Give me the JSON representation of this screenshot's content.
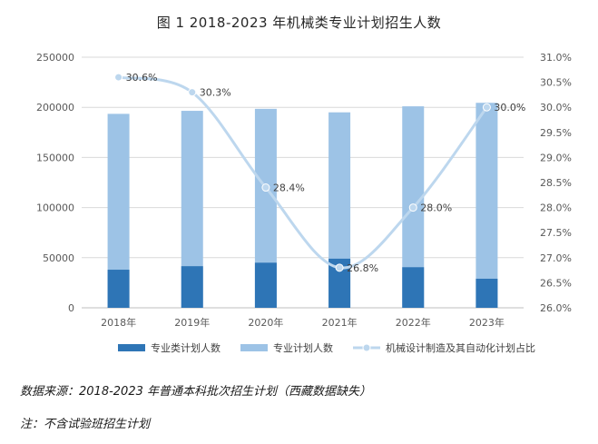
{
  "chart_data": {
    "type": "bar",
    "title": "图 1 2018-2023 年机械类专业计划招生人数",
    "categories": [
      "2018年",
      "2019年",
      "2020年",
      "2021年",
      "2022年",
      "2023年"
    ],
    "series": [
      {
        "name": "专业类计划人数",
        "type": "bar",
        "axis": "left",
        "color": "#2e75b6",
        "values": [
          38000,
          41500,
          45000,
          49000,
          40500,
          29000
        ]
      },
      {
        "name": "专业计划人数",
        "type": "bar",
        "axis": "left",
        "color": "#9dc3e6",
        "values": [
          193500,
          196500,
          198500,
          195000,
          201000,
          204500
        ]
      },
      {
        "name": "机械设计制造及其自动化计划占比",
        "type": "line",
        "axis": "right",
        "color": "#bdd7ee",
        "values": [
          30.6,
          30.3,
          28.4,
          26.8,
          28.0,
          30.0
        ],
        "labels": [
          "30.6%",
          "30.3%",
          "28.4%",
          "26.8%",
          "28.0%",
          "30.0%"
        ]
      }
    ],
    "ylim_left": [
      0,
      250000
    ],
    "yticks_left": [
      "0",
      "50000",
      "100000",
      "150000",
      "200000",
      "250000"
    ],
    "ylim_right": [
      26.0,
      31.0
    ],
    "yticks_right": [
      "26.0%",
      "26.5%",
      "27.0%",
      "27.5%",
      "28.0%",
      "28.5%",
      "29.0%",
      "29.5%",
      "30.0%",
      "30.5%",
      "31.0%"
    ],
    "grid": true,
    "legend": "bottom"
  },
  "notes": {
    "source": "数据来源：2018-2023 年普通本科批次招生计划（西藏数据缺失）",
    "exclusion": "注：不含试验班招生计划"
  }
}
